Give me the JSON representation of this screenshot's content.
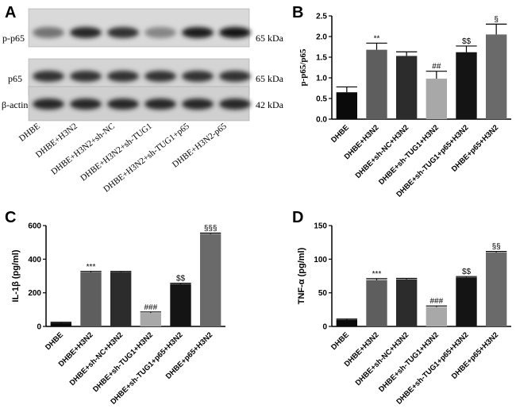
{
  "panels": {
    "A": {
      "letter": "A"
    },
    "B": {
      "letter": "B"
    },
    "C": {
      "letter": "C"
    },
    "D": {
      "letter": "D"
    }
  },
  "blot": {
    "rows": [
      {
        "label": "p-p65",
        "kda": "65 kDa",
        "intensity": [
          0.45,
          0.85,
          0.8,
          0.35,
          0.9,
          0.95
        ]
      },
      {
        "label": "p65",
        "kda": "65 kDa",
        "intensity": [
          0.8,
          0.8,
          0.8,
          0.8,
          0.8,
          0.8
        ]
      },
      {
        "label": "β-actin",
        "kda": "42 kDa",
        "intensity": [
          0.85,
          0.85,
          0.85,
          0.85,
          0.85,
          0.85
        ]
      }
    ],
    "lanes": [
      "DHBE",
      "DHBE+H3N2",
      "DHBE+H3N2+sh-NC",
      "DHBE+H3N2+sh-TUG1",
      "DHBE+H3N2+sh-TUG1+p65",
      "DHBE+H3N2-p65"
    ]
  },
  "chart_data": [
    {
      "panel": "B",
      "type": "bar",
      "ylabel": "p-p65/p65",
      "ylim": [
        0,
        2.5
      ],
      "yticks": [
        "0.0",
        "0.5",
        "1.0",
        "1.5",
        "2.0",
        "2.5"
      ],
      "tick_values": [
        0,
        0.5,
        1.0,
        1.5,
        2.0,
        2.5
      ],
      "categories": [
        "DHBE",
        "DHBE+H3N2",
        "DHBE+sh-NC+H3N2",
        "DHBE+sh-TUG1+H3N2",
        "DHBE+sh-TUG1+p65+H3N2",
        "DHBE+p65+H3N2"
      ],
      "values": [
        0.65,
        1.68,
        1.53,
        0.98,
        1.62,
        2.05
      ],
      "errors": [
        0.13,
        0.16,
        0.1,
        0.18,
        0.15,
        0.25
      ],
      "significance": [
        "",
        "**",
        "",
        "##",
        "$$",
        "§"
      ],
      "colors": [
        "#0a0a0a",
        "#5e5e5e",
        "#2c2c2c",
        "#a8a8a8",
        "#141414",
        "#6a6a6a"
      ]
    },
    {
      "panel": "C",
      "type": "bar",
      "ylabel": "IL-1β (pg/ml)",
      "ylim": [
        0,
        600
      ],
      "yticks": [
        "0",
        "200",
        "400",
        "600"
      ],
      "tick_values": [
        0,
        200,
        400,
        600
      ],
      "categories": [
        "DHBE",
        "DHBE+H3N2",
        "DHBE+sh-NC+H3N2",
        "DHBE+sh-TUG1+H3N2",
        "DHBE+sh-TUG1+p65+H3N2",
        "DHBE+p65+H3N2"
      ],
      "values": [
        22,
        322,
        323,
        80,
        252,
        550
      ],
      "errors": [
        3,
        5,
        4,
        6,
        5,
        5
      ],
      "significance": [
        "",
        "***",
        "",
        "###",
        "$$",
        "§§§"
      ],
      "colors": [
        "#0a0a0a",
        "#5e5e5e",
        "#2c2c2c",
        "#a8a8a8",
        "#141414",
        "#6a6a6a"
      ]
    },
    {
      "panel": "D",
      "type": "bar",
      "ylabel": "TNF-α (pg/ml)",
      "ylim": [
        0,
        150
      ],
      "yticks": [
        "0",
        "50",
        "100",
        "150"
      ],
      "tick_values": [
        0,
        50,
        100,
        150
      ],
      "categories": [
        "DHBE",
        "DHBE+H3N2",
        "DHBE+sh-NC+H3N2",
        "DHBE+sh-TUG1+H3N2",
        "DHBE+sh-TUG1+p65+H3N2",
        "DHBE+p65+H3N2"
      ],
      "values": [
        10,
        69,
        70,
        29,
        73,
        110
      ],
      "errors": [
        1,
        2,
        1.5,
        1.5,
        1.2,
        1.5
      ],
      "significance": [
        "",
        "***",
        "",
        "###",
        "$$",
        "§§"
      ],
      "colors": [
        "#0a0a0a",
        "#5e5e5e",
        "#2c2c2c",
        "#a8a8a8",
        "#141414",
        "#6a6a6a"
      ]
    }
  ]
}
